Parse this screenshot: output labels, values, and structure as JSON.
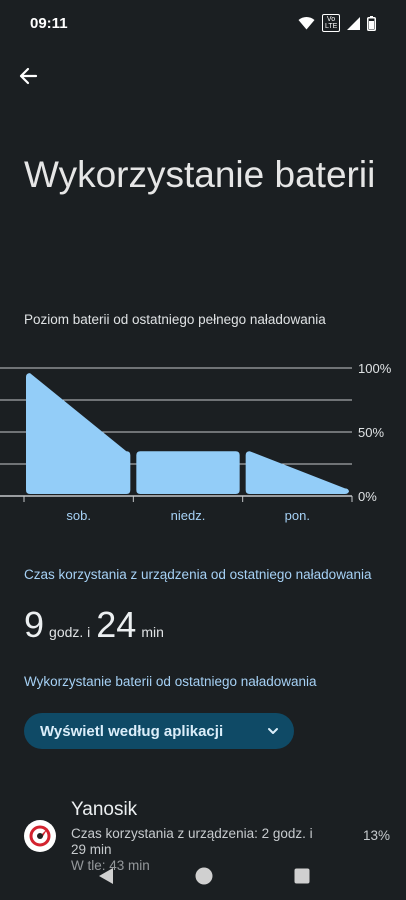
{
  "status_bar": {
    "time": "09:11",
    "volte_badge": "Vo\nLTE",
    "icons": [
      "wifi-icon",
      "volte-icon",
      "signal-icon",
      "battery-icon"
    ]
  },
  "header": {
    "back_icon": "arrow-left-icon",
    "title": "Wykorzystanie baterii"
  },
  "battery_chart": {
    "caption": "Poziom baterii od ostatniego pełnego naładowania"
  },
  "chart_data": {
    "type": "area",
    "days": [
      "sob.",
      "niedz.",
      "pon."
    ],
    "y_ticks": [
      "100%",
      "50%",
      "0%"
    ],
    "ylim": [
      0,
      100
    ],
    "grid": true,
    "segments": [
      {
        "day": "sob.",
        "start": 96,
        "end": 35
      },
      {
        "day": "niedz.",
        "start": 35,
        "end": 35
      },
      {
        "day": "pon.",
        "start": 35,
        "end": 6
      }
    ],
    "fill_color": "#93cdf8"
  },
  "screen_time": {
    "label": "Czas korzystania z urządzenia od ostatniego naładowania",
    "hours": "9",
    "hours_unit": "godz. i",
    "minutes": "24",
    "minutes_unit": "min"
  },
  "battery_usage": {
    "label": "Wykorzystanie baterii od ostatniego naładowania",
    "view_button": "Wyświetl według aplikacji"
  },
  "apps": [
    {
      "name": "Yanosik",
      "usage": "Czas korzystania z urządzenia: 2 godz. i 29 min",
      "background": "W tle: 43 min",
      "percent": "13%",
      "icon": "yanosik-app-icon"
    }
  ],
  "nav_bar": {
    "icons": [
      "back-triangle-icon",
      "home-circle-icon",
      "recents-square-icon"
    ]
  },
  "colors": {
    "background": "#1b1f22",
    "accent": "#a6d1f5",
    "chart_fill": "#93cdf8",
    "button_bg": "#0f4a66"
  }
}
